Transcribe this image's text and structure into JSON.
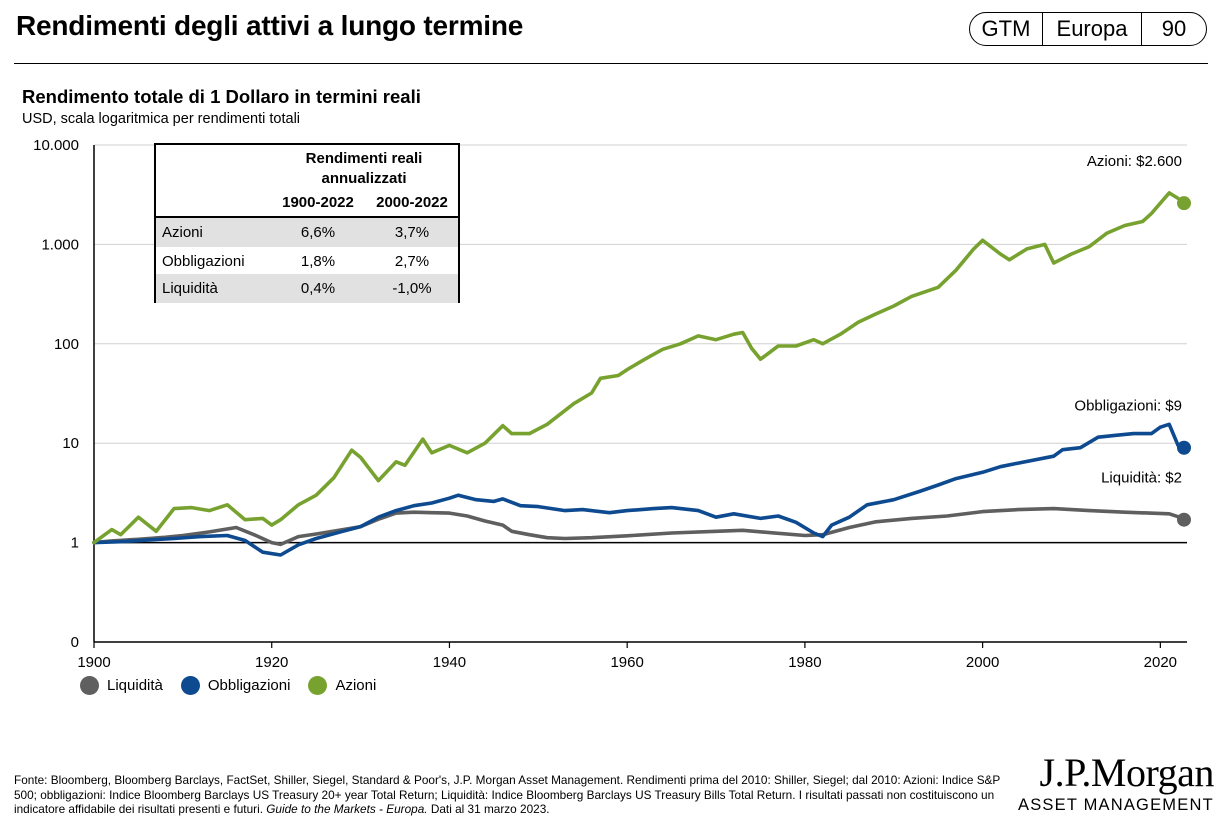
{
  "header": {
    "title": "Rendimenti degli attivi a lungo termine",
    "badge": {
      "left": "GTM",
      "middle": "Europa",
      "right": "90"
    }
  },
  "chart_data": {
    "type": "line",
    "title": "Rendimento totale di 1 Dollaro in termini reali",
    "subtitle": "USD, scala logaritmica per rendimenti totali",
    "xlabel": "",
    "ylabel": "",
    "yscale": "log",
    "xlim": [
      1900,
      2023
    ],
    "x_ticks": [
      1900,
      1920,
      1940,
      1960,
      1980,
      2000,
      2020
    ],
    "y_ticks": [
      {
        "value": 0.1,
        "label": "0"
      },
      {
        "value": 1,
        "label": "1"
      },
      {
        "value": 10,
        "label": "10"
      },
      {
        "value": 100,
        "label": "100"
      },
      {
        "value": 1000,
        "label": "1.000"
      },
      {
        "value": 10000,
        "label": "10.000"
      }
    ],
    "grid": "horizontal",
    "legend_position": "bottom-left",
    "series": [
      {
        "name": "Liquidità",
        "color": "#5f5f5f",
        "end_label": "Liquidità: $2",
        "end_value": 1.7,
        "points": [
          [
            1900,
            1.0
          ],
          [
            1902,
            1.04
          ],
          [
            1905,
            1.08
          ],
          [
            1908,
            1.13
          ],
          [
            1910,
            1.18
          ],
          [
            1913,
            1.28
          ],
          [
            1916,
            1.42
          ],
          [
            1918,
            1.2
          ],
          [
            1920,
            1.0
          ],
          [
            1921,
            0.96
          ],
          [
            1923,
            1.15
          ],
          [
            1925,
            1.22
          ],
          [
            1928,
            1.35
          ],
          [
            1930,
            1.45
          ],
          [
            1932,
            1.72
          ],
          [
            1934,
            1.98
          ],
          [
            1936,
            2.02
          ],
          [
            1938,
            2.0
          ],
          [
            1940,
            1.98
          ],
          [
            1942,
            1.85
          ],
          [
            1944,
            1.65
          ],
          [
            1946,
            1.5
          ],
          [
            1947,
            1.3
          ],
          [
            1949,
            1.2
          ],
          [
            1951,
            1.12
          ],
          [
            1953,
            1.1
          ],
          [
            1956,
            1.12
          ],
          [
            1960,
            1.17
          ],
          [
            1965,
            1.25
          ],
          [
            1970,
            1.3
          ],
          [
            1973,
            1.33
          ],
          [
            1976,
            1.26
          ],
          [
            1980,
            1.18
          ],
          [
            1982,
            1.2
          ],
          [
            1985,
            1.42
          ],
          [
            1988,
            1.62
          ],
          [
            1992,
            1.75
          ],
          [
            1996,
            1.85
          ],
          [
            2000,
            2.05
          ],
          [
            2004,
            2.15
          ],
          [
            2008,
            2.2
          ],
          [
            2012,
            2.1
          ],
          [
            2016,
            2.02
          ],
          [
            2021,
            1.95
          ],
          [
            2022,
            1.82
          ]
        ]
      },
      {
        "name": "Obbligazioni",
        "color": "#0e4a8f",
        "end_label": "Obbligazioni: $9",
        "end_value": 9,
        "points": [
          [
            1900,
            1.0
          ],
          [
            1903,
            1.02
          ],
          [
            1906,
            1.06
          ],
          [
            1909,
            1.1
          ],
          [
            1912,
            1.15
          ],
          [
            1915,
            1.18
          ],
          [
            1917,
            1.05
          ],
          [
            1919,
            0.8
          ],
          [
            1921,
            0.75
          ],
          [
            1923,
            0.95
          ],
          [
            1925,
            1.1
          ],
          [
            1928,
            1.3
          ],
          [
            1930,
            1.45
          ],
          [
            1932,
            1.8
          ],
          [
            1934,
            2.1
          ],
          [
            1936,
            2.35
          ],
          [
            1938,
            2.5
          ],
          [
            1940,
            2.8
          ],
          [
            1941,
            3.0
          ],
          [
            1943,
            2.7
          ],
          [
            1945,
            2.6
          ],
          [
            1946,
            2.75
          ],
          [
            1948,
            2.35
          ],
          [
            1950,
            2.3
          ],
          [
            1953,
            2.1
          ],
          [
            1955,
            2.15
          ],
          [
            1958,
            2.0
          ],
          [
            1960,
            2.1
          ],
          [
            1963,
            2.2
          ],
          [
            1965,
            2.25
          ],
          [
            1968,
            2.1
          ],
          [
            1970,
            1.8
          ],
          [
            1972,
            1.95
          ],
          [
            1975,
            1.75
          ],
          [
            1977,
            1.85
          ],
          [
            1979,
            1.6
          ],
          [
            1981,
            1.25
          ],
          [
            1982,
            1.15
          ],
          [
            1983,
            1.5
          ],
          [
            1985,
            1.8
          ],
          [
            1987,
            2.4
          ],
          [
            1990,
            2.7
          ],
          [
            1993,
            3.3
          ],
          [
            1995,
            3.8
          ],
          [
            1997,
            4.4
          ],
          [
            2000,
            5.1
          ],
          [
            2002,
            5.8
          ],
          [
            2004,
            6.3
          ],
          [
            2008,
            7.4
          ],
          [
            2009,
            8.6
          ],
          [
            2011,
            9.0
          ],
          [
            2013,
            11.5
          ],
          [
            2015,
            12.0
          ],
          [
            2017,
            12.5
          ],
          [
            2019,
            12.5
          ],
          [
            2020,
            14.5
          ],
          [
            2021,
            15.5
          ],
          [
            2022,
            9.5
          ]
        ]
      },
      {
        "name": "Azioni",
        "color": "#78a22f",
        "end_label": "Azioni: $2.600",
        "end_value": 2600,
        "points": [
          [
            1900,
            1.0
          ],
          [
            1902,
            1.35
          ],
          [
            1903,
            1.2
          ],
          [
            1905,
            1.8
          ],
          [
            1907,
            1.3
          ],
          [
            1909,
            2.2
          ],
          [
            1911,
            2.25
          ],
          [
            1913,
            2.1
          ],
          [
            1915,
            2.4
          ],
          [
            1917,
            1.7
          ],
          [
            1919,
            1.75
          ],
          [
            1920,
            1.5
          ],
          [
            1921,
            1.7
          ],
          [
            1923,
            2.4
          ],
          [
            1925,
            3.0
          ],
          [
            1927,
            4.5
          ],
          [
            1929,
            8.5
          ],
          [
            1930,
            7.2
          ],
          [
            1932,
            4.2
          ],
          [
            1934,
            6.5
          ],
          [
            1935,
            6.0
          ],
          [
            1937,
            11.0
          ],
          [
            1938,
            8.0
          ],
          [
            1940,
            9.5
          ],
          [
            1942,
            8.0
          ],
          [
            1944,
            10.0
          ],
          [
            1946,
            15.0
          ],
          [
            1947,
            12.5
          ],
          [
            1949,
            12.5
          ],
          [
            1951,
            15.5
          ],
          [
            1954,
            25.0
          ],
          [
            1956,
            32.0
          ],
          [
            1957,
            45.0
          ],
          [
            1959,
            48.0
          ],
          [
            1960,
            55.0
          ],
          [
            1962,
            70.0
          ],
          [
            1964,
            88.0
          ],
          [
            1966,
            100.0
          ],
          [
            1968,
            120.0
          ],
          [
            1970,
            110.0
          ],
          [
            1972,
            125.0
          ],
          [
            1973,
            130.0
          ],
          [
            1974,
            90.0
          ],
          [
            1975,
            70.0
          ],
          [
            1977,
            95.0
          ],
          [
            1979,
            95.0
          ],
          [
            1981,
            110.0
          ],
          [
            1982,
            100.0
          ],
          [
            1984,
            125.0
          ],
          [
            1986,
            165.0
          ],
          [
            1988,
            200.0
          ],
          [
            1990,
            240.0
          ],
          [
            1992,
            300.0
          ],
          [
            1995,
            370.0
          ],
          [
            1997,
            550.0
          ],
          [
            1999,
            900.0
          ],
          [
            2000,
            1100.0
          ],
          [
            2002,
            800.0
          ],
          [
            2003,
            700.0
          ],
          [
            2005,
            900.0
          ],
          [
            2007,
            1000.0
          ],
          [
            2008,
            650.0
          ],
          [
            2010,
            800.0
          ],
          [
            2012,
            950.0
          ],
          [
            2014,
            1300.0
          ],
          [
            2016,
            1550.0
          ],
          [
            2018,
            1700.0
          ],
          [
            2019,
            2050.0
          ],
          [
            2020,
            2600.0
          ],
          [
            2021,
            3300.0
          ],
          [
            2022,
            2900.0
          ]
        ]
      }
    ]
  },
  "table": {
    "header_title": "Rendimenti reali annualizzati",
    "col1": "1900-2022",
    "col2": "2000-2022",
    "rows": [
      {
        "label": "Azioni",
        "v1": "6,6%",
        "v2": "3,7%"
      },
      {
        "label": "Obbligazioni",
        "v1": "1,8%",
        "v2": "2,7%"
      },
      {
        "label": "Liquidità",
        "v1": "0,4%",
        "v2": "-1,0%"
      }
    ]
  },
  "legend": {
    "items": [
      {
        "label": "Liquidità",
        "color": "#5f5f5f"
      },
      {
        "label": "Obbligazioni",
        "color": "#0e4a8f"
      },
      {
        "label": "Azioni",
        "color": "#78a22f"
      }
    ]
  },
  "footnote": {
    "text": "Fonte: Bloomberg, Bloomberg Barclays, FactSet, Shiller, Siegel, Standard & Poor's, J.P. Morgan Asset Management. Rendimenti prima del 2010: Shiller, Siegel; dal 2010: Azioni: Indice S&P 500; obbligazioni: Indice Bloomberg Barclays US Treasury 20+ year Total Return; Liquidità: Indice Bloomberg Barclays US Treasury Bills Total Return. I risultati passati non costituiscono un indicatore affidabile dei risultati presenti e futuri. ",
    "italic": "Guide to the Markets - Europa.",
    "tail": " Dati al 31 marzo 2023."
  },
  "logo": {
    "name": "J.P.Morgan",
    "subtitle": "ASSET MANAGEMENT"
  }
}
